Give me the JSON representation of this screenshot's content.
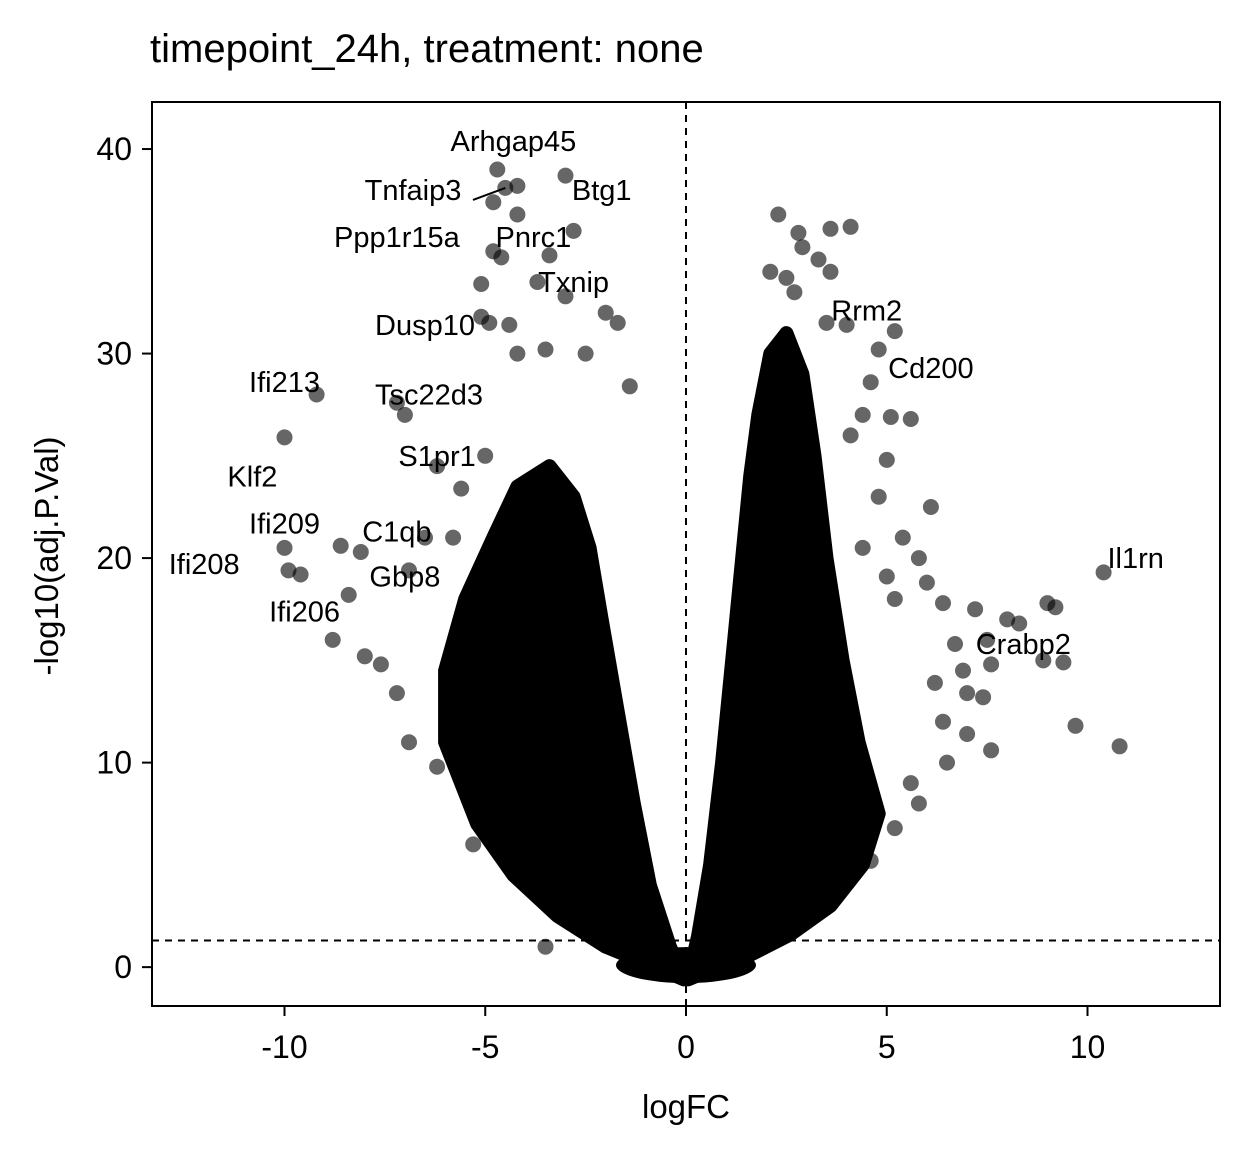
{
  "chart_data": {
    "type": "scatter",
    "title": "timepoint_24h, treatment: none",
    "xlabel": "logFC",
    "ylabel": "-log10(adj.P.Val)",
    "xlim": [
      -13.3,
      13.3
    ],
    "ylim": [
      -1.9,
      42.3
    ],
    "x_ticks": [
      -10,
      -5,
      0,
      5,
      10
    ],
    "y_ticks": [
      0,
      10,
      20,
      30,
      40
    ],
    "x_tick_labels": [
      "-10",
      "-5",
      "0",
      "5",
      "10"
    ],
    "y_tick_labels": [
      "0",
      "10",
      "20",
      "30",
      "40"
    ],
    "thresholds": {
      "vertical_x": 0,
      "horizontal_y": 1.3
    },
    "grid": false,
    "legend": "none",
    "point_color": "#000000",
    "point_opacity": 0.6,
    "labeled_genes": [
      {
        "name": "Arhgap45",
        "x": -4.7,
        "y": 39.0,
        "label_x": -4.3,
        "label_y": 40.4
      },
      {
        "name": "Tnfaip3",
        "x": -4.5,
        "y": 38.1,
        "label_x": -6.8,
        "label_y": 38.0
      },
      {
        "name": "Btg1",
        "x": -3.0,
        "y": 38.5,
        "label_x": -2.1,
        "label_y": 38.0
      },
      {
        "name": "Ppp1r15a",
        "x": -4.6,
        "y": 34.9,
        "label_x": -7.2,
        "label_y": 35.7
      },
      {
        "name": "Pnrc1",
        "x": -4.2,
        "y": 36.8,
        "label_x": -3.8,
        "label_y": 35.7
      },
      {
        "name": "Txnip",
        "x": -4.0,
        "y": 34.2,
        "label_x": -2.8,
        "label_y": 33.5
      },
      {
        "name": "Dusp10",
        "x": -4.9,
        "y": 31.5,
        "label_x": -6.5,
        "label_y": 31.4
      },
      {
        "name": "Ifi213",
        "x": -9.2,
        "y": 28.0,
        "label_x": -10.0,
        "label_y": 28.6
      },
      {
        "name": "Tsc22d3",
        "x": -7.0,
        "y": 27.0,
        "label_x": -6.4,
        "label_y": 28.0
      },
      {
        "name": "S1pr1",
        "x": -6.2,
        "y": 24.5,
        "label_x": -6.2,
        "label_y": 25.0
      },
      {
        "name": "Klf2",
        "x": -10.0,
        "y": 25.9,
        "label_x": -10.8,
        "label_y": 24.0
      },
      {
        "name": "Ifi209",
        "x": -9.4,
        "y": 21.0,
        "label_x": -10.0,
        "label_y": 21.7
      },
      {
        "name": "C1qb",
        "x": -7.3,
        "y": 20.5,
        "label_x": -7.2,
        "label_y": 21.3
      },
      {
        "name": "Ifi208",
        "x": -10.0,
        "y": 20.5,
        "label_x": -12.0,
        "label_y": 19.7
      },
      {
        "name": "Gbp8",
        "x": -7.3,
        "y": 19.5,
        "label_x": -7.0,
        "label_y": 19.1
      },
      {
        "name": "Ifi206",
        "x": -9.9,
        "y": 19.2,
        "label_x": -9.5,
        "label_y": 17.4
      },
      {
        "name": "Rrm2",
        "x": 3.5,
        "y": 31.5,
        "label_x": 4.5,
        "label_y": 32.1
      },
      {
        "name": "Cd200",
        "x": 5.2,
        "y": 31.1,
        "label_x": 6.1,
        "label_y": 29.3
      },
      {
        "name": "Il1rn",
        "x": 10.4,
        "y": 19.3,
        "label_x": 11.2,
        "label_y": 20.0
      },
      {
        "name": "Crabp2",
        "x": 6.9,
        "y": 14.5,
        "label_x": 8.4,
        "label_y": 15.8
      }
    ],
    "outlier_points": [
      [
        -9.2,
        28.0
      ],
      [
        -10.0,
        25.9
      ],
      [
        -10.0,
        20.5
      ],
      [
        -9.9,
        19.4
      ],
      [
        -9.6,
        19.2
      ],
      [
        -8.8,
        16.0
      ],
      [
        -8.6,
        20.6
      ],
      [
        -8.4,
        18.2
      ],
      [
        -8.1,
        20.3
      ],
      [
        -8.0,
        15.2
      ],
      [
        -7.6,
        14.8
      ],
      [
        -7.2,
        13.4
      ],
      [
        -6.9,
        11.0
      ],
      [
        -6.2,
        9.8
      ],
      [
        -7.0,
        27.0
      ],
      [
        -7.2,
        27.6
      ],
      [
        -6.2,
        24.5
      ],
      [
        -5.6,
        23.4
      ],
      [
        -5.8,
        21.0
      ],
      [
        -6.5,
        21.0
      ],
      [
        -6.9,
        19.4
      ],
      [
        -5.3,
        6.0
      ],
      [
        -5.0,
        25.0
      ],
      [
        -4.7,
        39.0
      ],
      [
        -4.8,
        37.4
      ],
      [
        -4.5,
        38.1
      ],
      [
        -4.2,
        38.2
      ],
      [
        -3.0,
        38.7
      ],
      [
        -2.8,
        36.0
      ],
      [
        -4.2,
        36.8
      ],
      [
        -4.8,
        35.0
      ],
      [
        -4.6,
        34.7
      ],
      [
        -3.4,
        34.8
      ],
      [
        -3.7,
        33.5
      ],
      [
        -5.1,
        33.4
      ],
      [
        -3.0,
        32.8
      ],
      [
        -5.1,
        31.8
      ],
      [
        -4.9,
        31.5
      ],
      [
        -4.4,
        31.4
      ],
      [
        -2.0,
        32.0
      ],
      [
        -1.7,
        31.5
      ],
      [
        -4.2,
        30.0
      ],
      [
        -3.5,
        30.2
      ],
      [
        -2.5,
        30.0
      ],
      [
        -1.4,
        28.4
      ],
      [
        -3.5,
        1.0
      ],
      [
        2.3,
        36.8
      ],
      [
        2.8,
        35.9
      ],
      [
        3.6,
        36.1
      ],
      [
        4.1,
        36.2
      ],
      [
        2.9,
        35.2
      ],
      [
        3.3,
        34.6
      ],
      [
        3.6,
        34.0
      ],
      [
        2.5,
        33.7
      ],
      [
        2.1,
        34.0
      ],
      [
        2.7,
        33.0
      ],
      [
        3.5,
        31.5
      ],
      [
        4.0,
        31.4
      ],
      [
        5.2,
        31.1
      ],
      [
        4.8,
        30.2
      ],
      [
        4.6,
        28.6
      ],
      [
        4.4,
        27.0
      ],
      [
        5.1,
        26.9
      ],
      [
        5.6,
        26.8
      ],
      [
        4.1,
        26.0
      ],
      [
        5.0,
        24.8
      ],
      [
        4.8,
        23.0
      ],
      [
        6.1,
        22.5
      ],
      [
        5.4,
        21.0
      ],
      [
        4.4,
        20.5
      ],
      [
        5.8,
        20.0
      ],
      [
        5.0,
        19.1
      ],
      [
        6.0,
        18.8
      ],
      [
        5.2,
        18.0
      ],
      [
        6.4,
        17.8
      ],
      [
        7.2,
        17.5
      ],
      [
        7.5,
        16.0
      ],
      [
        6.7,
        15.8
      ],
      [
        8.0,
        17.0
      ],
      [
        9.0,
        17.8
      ],
      [
        9.2,
        17.6
      ],
      [
        8.3,
        16.8
      ],
      [
        8.9,
        15.0
      ],
      [
        9.4,
        14.9
      ],
      [
        7.6,
        14.8
      ],
      [
        6.9,
        14.5
      ],
      [
        6.2,
        13.9
      ],
      [
        7.0,
        13.4
      ],
      [
        7.4,
        13.2
      ],
      [
        6.4,
        12.0
      ],
      [
        7.0,
        11.4
      ],
      [
        7.6,
        10.6
      ],
      [
        9.7,
        11.8
      ],
      [
        10.4,
        19.3
      ],
      [
        10.8,
        10.8
      ],
      [
        6.5,
        10.0
      ],
      [
        5.8,
        8.0
      ],
      [
        5.2,
        6.8
      ],
      [
        4.6,
        5.2
      ],
      [
        5.6,
        9.0
      ]
    ],
    "dense_region": {
      "description": "volcano cloud of thousands of genes",
      "left_boundary": [
        [
          -0.05,
          -0.6
        ],
        [
          -0.4,
          1.0
        ],
        [
          -0.9,
          4.0
        ],
        [
          -1.3,
          8.0
        ],
        [
          -1.7,
          12.5
        ],
        [
          -2.1,
          17.0
        ],
        [
          -2.4,
          20.5
        ],
        [
          -2.8,
          23.0
        ],
        [
          -3.4,
          24.5
        ],
        [
          -4.2,
          23.5
        ],
        [
          -4.8,
          21.0
        ],
        [
          -5.5,
          18.0
        ],
        [
          -6.0,
          14.5
        ],
        [
          -6.0,
          11.0
        ],
        [
          -5.2,
          7.0
        ],
        [
          -4.3,
          4.5
        ],
        [
          -3.2,
          2.5
        ],
        [
          -2.0,
          1.0
        ],
        [
          -1.0,
          0.2
        ]
      ],
      "right_boundary": [
        [
          0.05,
          -0.6
        ],
        [
          0.3,
          1.5
        ],
        [
          0.6,
          5.0
        ],
        [
          0.9,
          10.0
        ],
        [
          1.2,
          16.0
        ],
        [
          1.4,
          20.0
        ],
        [
          1.6,
          24.0
        ],
        [
          1.8,
          27.0
        ],
        [
          2.1,
          30.0
        ],
        [
          2.5,
          31.0
        ],
        [
          2.9,
          29.0
        ],
        [
          3.2,
          25.0
        ],
        [
          3.5,
          20.0
        ],
        [
          3.9,
          15.0
        ],
        [
          4.3,
          11.0
        ],
        [
          4.8,
          7.5
        ],
        [
          4.4,
          5.0
        ],
        [
          3.6,
          3.0
        ],
        [
          2.6,
          1.6
        ],
        [
          1.6,
          0.6
        ],
        [
          0.8,
          0.0
        ]
      ]
    }
  }
}
